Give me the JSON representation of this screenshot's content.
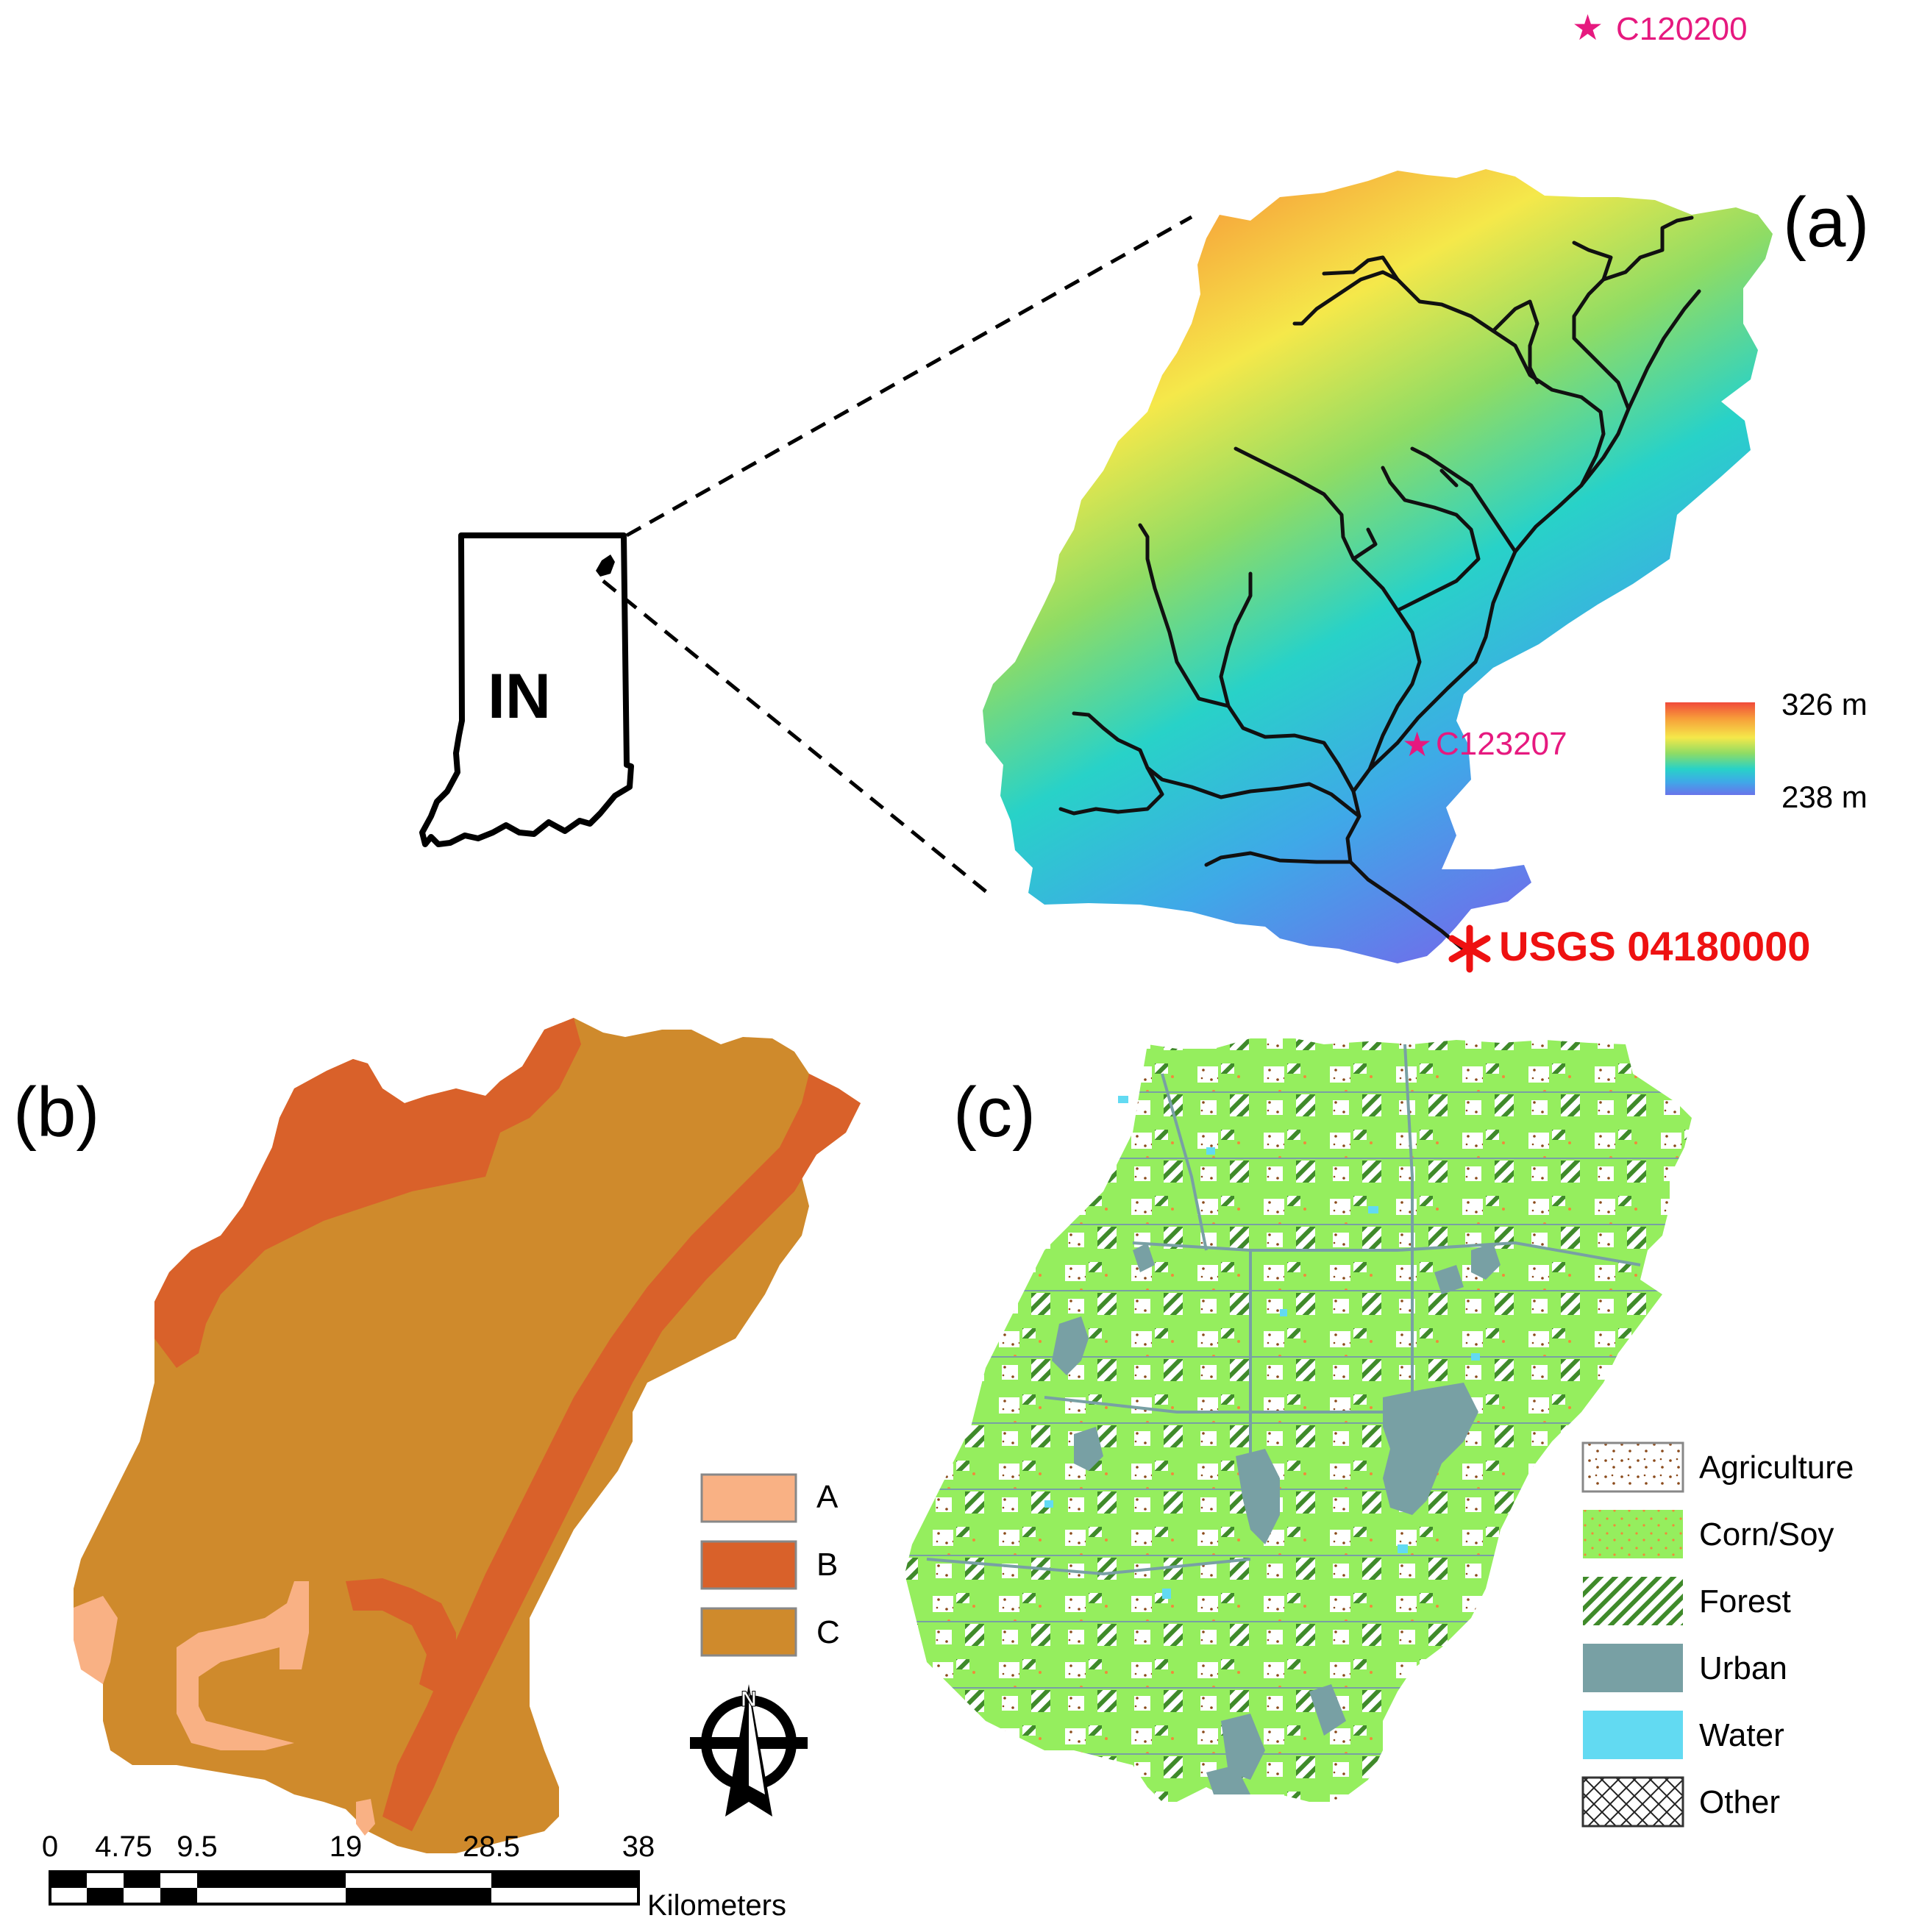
{
  "panels": {
    "a": {
      "label": "(a)"
    },
    "b": {
      "label": "(b)"
    },
    "c": {
      "label": "(c)"
    }
  },
  "state_inset": {
    "state_abbrev": "IN"
  },
  "stations": [
    {
      "id": "C120200",
      "symbol": "star",
      "color": "#e6197f"
    },
    {
      "id": "C123207",
      "symbol": "star",
      "color": "#e6197f"
    }
  ],
  "gauge": {
    "label": "USGS 04180000",
    "symbol": "asterisk",
    "color": "#ee1111"
  },
  "elevation_legend": {
    "max_label": "326 m",
    "min_label": "238 m",
    "colors": [
      "#f04a3a",
      "#f7a03a",
      "#f5e84a",
      "#8fdc64",
      "#28d2c8",
      "#3fa8e8",
      "#6a74ea"
    ]
  },
  "soil_legend": {
    "items": [
      {
        "label": "A",
        "color": "#f9b184"
      },
      {
        "label": "B",
        "color": "#d9612a"
      },
      {
        "label": "C",
        "color": "#cf8a2c"
      }
    ]
  },
  "landuse_legend": {
    "items": [
      {
        "label": "Agriculture",
        "pattern": "dots-brown"
      },
      {
        "label": "Corn/Soy",
        "pattern": "dots-green"
      },
      {
        "label": "Forest",
        "pattern": "hatch-green"
      },
      {
        "label": "Urban",
        "color": "#78a0a4"
      },
      {
        "label": "Water",
        "color": "#62daf2"
      },
      {
        "label": "Other",
        "pattern": "crosshatch"
      }
    ]
  },
  "scale_bar": {
    "ticks": [
      "0",
      "4.75",
      "9.5",
      "19",
      "28.5",
      "38"
    ],
    "unit": "Kilometers"
  },
  "north_arrow": {
    "label": "N"
  }
}
